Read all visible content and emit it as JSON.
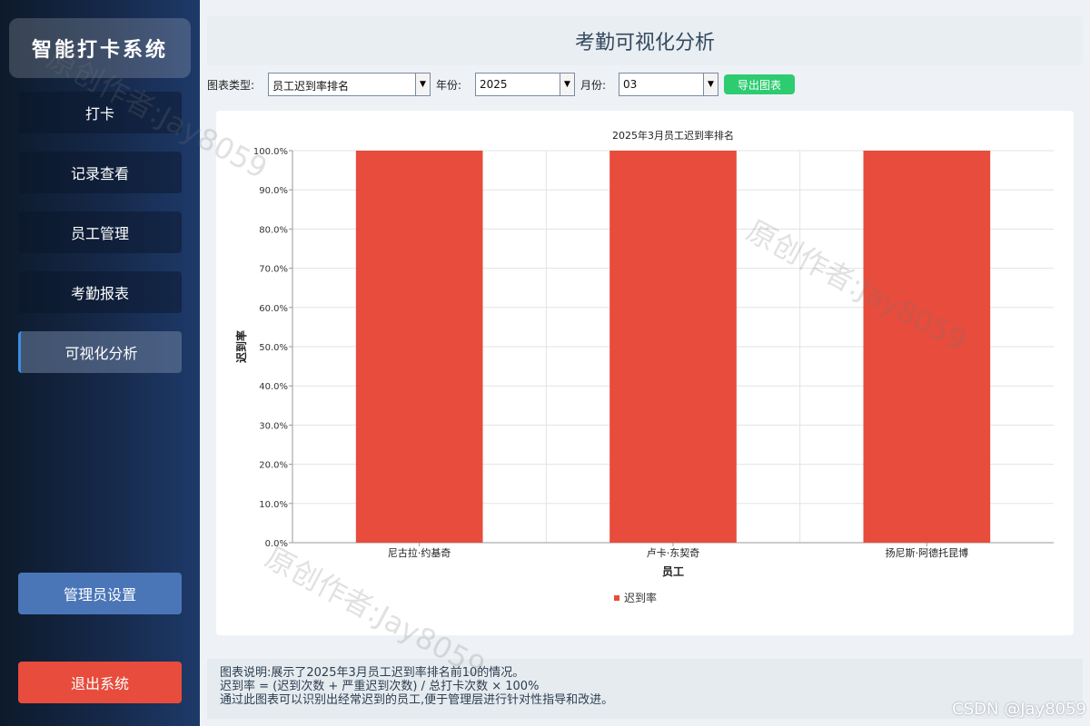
{
  "sidebar": {
    "logo": "智能打卡系统",
    "items": [
      {
        "label": "打卡"
      },
      {
        "label": "记录查看"
      },
      {
        "label": "员工管理"
      },
      {
        "label": "考勤报表"
      },
      {
        "label": "可视化分析",
        "active": true
      }
    ],
    "admin_label": "管理员设置",
    "exit_label": "退出系统"
  },
  "page": {
    "title": "考勤可视化分析"
  },
  "toolbar": {
    "chart_type_label": "图表类型:",
    "chart_type_value": "员工迟到率排名",
    "year_label": "年份:",
    "year_value": "2025",
    "month_label": "月份:",
    "month_value": "03",
    "export_label": "导出图表"
  },
  "chart_data": {
    "type": "bar",
    "title": "2025年3月员工迟到率排名",
    "xlabel": "员工",
    "ylabel": "迟到率",
    "categories": [
      "尼古拉·约基奇",
      "卢卡·东契奇",
      "扬尼斯·阿德托昆博"
    ],
    "series": [
      {
        "name": "迟到率",
        "values": [
          100.0,
          100.0,
          100.0
        ],
        "color": "#e74c3c"
      }
    ],
    "ylim": [
      0,
      100
    ],
    "yticks": [
      "0.0%",
      "10.0%",
      "20.0%",
      "30.0%",
      "40.0%",
      "50.0%",
      "60.0%",
      "70.0%",
      "80.0%",
      "90.0%",
      "100.0%"
    ],
    "grid": true,
    "legend": "bottom"
  },
  "description": {
    "line1": "图表说明:展示了2025年3月员工迟到率排名前10的情况。",
    "line2": "迟到率 = (迟到次数 + 严重迟到次数) / 总打卡次数 × 100%",
    "line3": "通过此图表可以识别出经常迟到的员工,便于管理层进行针对性指导和改进。"
  },
  "watermark": {
    "text": "原创作者:Jay8059",
    "csdn": "CSDN @Jay8059"
  }
}
